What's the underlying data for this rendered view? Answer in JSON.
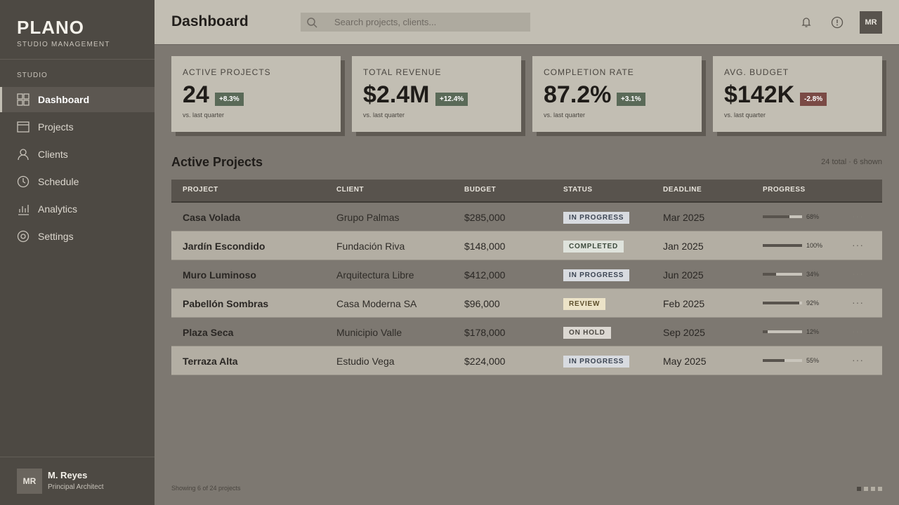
{
  "sidebar": {
    "brand": "PLANO",
    "tagline": "STUDIO MANAGEMENT",
    "section": "STUDIO",
    "nav": [
      "Dashboard",
      "Projects",
      "Clients",
      "Schedule",
      "Analytics",
      "Settings"
    ],
    "user": {
      "initials": "MR",
      "name": "M. Reyes",
      "role": "Principal Architect"
    }
  },
  "header": {
    "title": "Dashboard",
    "search_placeholder": "Search projects, clients...",
    "avatar": "MR"
  },
  "stats": [
    {
      "label": "ACTIVE PROJECTS",
      "value": "24",
      "change": "+8.3%",
      "note": "vs. last quarter"
    },
    {
      "label": "TOTAL REVENUE",
      "value": "$2.4M",
      "change": "+12.4%",
      "note": "vs. last quarter"
    },
    {
      "label": "COMPLETION RATE",
      "value": "87.2%",
      "change": "+3.1%",
      "note": "vs. last quarter"
    },
    {
      "label": "AVG. BUDGET",
      "value": "$142K",
      "change": "-2.8%",
      "note": "vs. last quarter"
    }
  ],
  "table": {
    "title": "Active Projects",
    "summary": "24 total · 6 shown",
    "columns": [
      "PROJECT",
      "CLIENT",
      "BUDGET",
      "STATUS",
      "DEADLINE",
      "PROGRESS"
    ],
    "rows": [
      {
        "project": "Casa Volada",
        "client": "Grupo Palmas",
        "budget": "$285,000",
        "status": "IN PROGRESS",
        "deadline": "Mar 2025",
        "progress": 68,
        "progress_label": "68%"
      },
      {
        "project": "Jardín Escondido",
        "client": "Fundación Riva",
        "budget": "$148,000",
        "status": "COMPLETED",
        "deadline": "Jan 2025",
        "progress": 100,
        "progress_label": "100%"
      },
      {
        "project": "Muro Luminoso",
        "client": "Arquitectura Libre",
        "budget": "$412,000",
        "status": "IN PROGRESS",
        "deadline": "Jun 2025",
        "progress": 34,
        "progress_label": "34%"
      },
      {
        "project": "Pabellón Sombras",
        "client": "Casa Moderna SA",
        "budget": "$96,000",
        "status": "REVIEW",
        "deadline": "Feb 2025",
        "progress": 92,
        "progress_label": "92%"
      },
      {
        "project": "Plaza Seca",
        "client": "Municipio Valle",
        "budget": "$178,000",
        "status": "ON HOLD",
        "deadline": "Sep 2025",
        "progress": 12,
        "progress_label": "12%"
      },
      {
        "project": "Terraza Alta",
        "client": "Estudio Vega",
        "budget": "$224,000",
        "status": "IN PROGRESS",
        "deadline": "May 2025",
        "progress": 55,
        "progress_label": "55%"
      }
    ]
  },
  "footer": {
    "showing": "Showing 6 of 24 projects"
  }
}
